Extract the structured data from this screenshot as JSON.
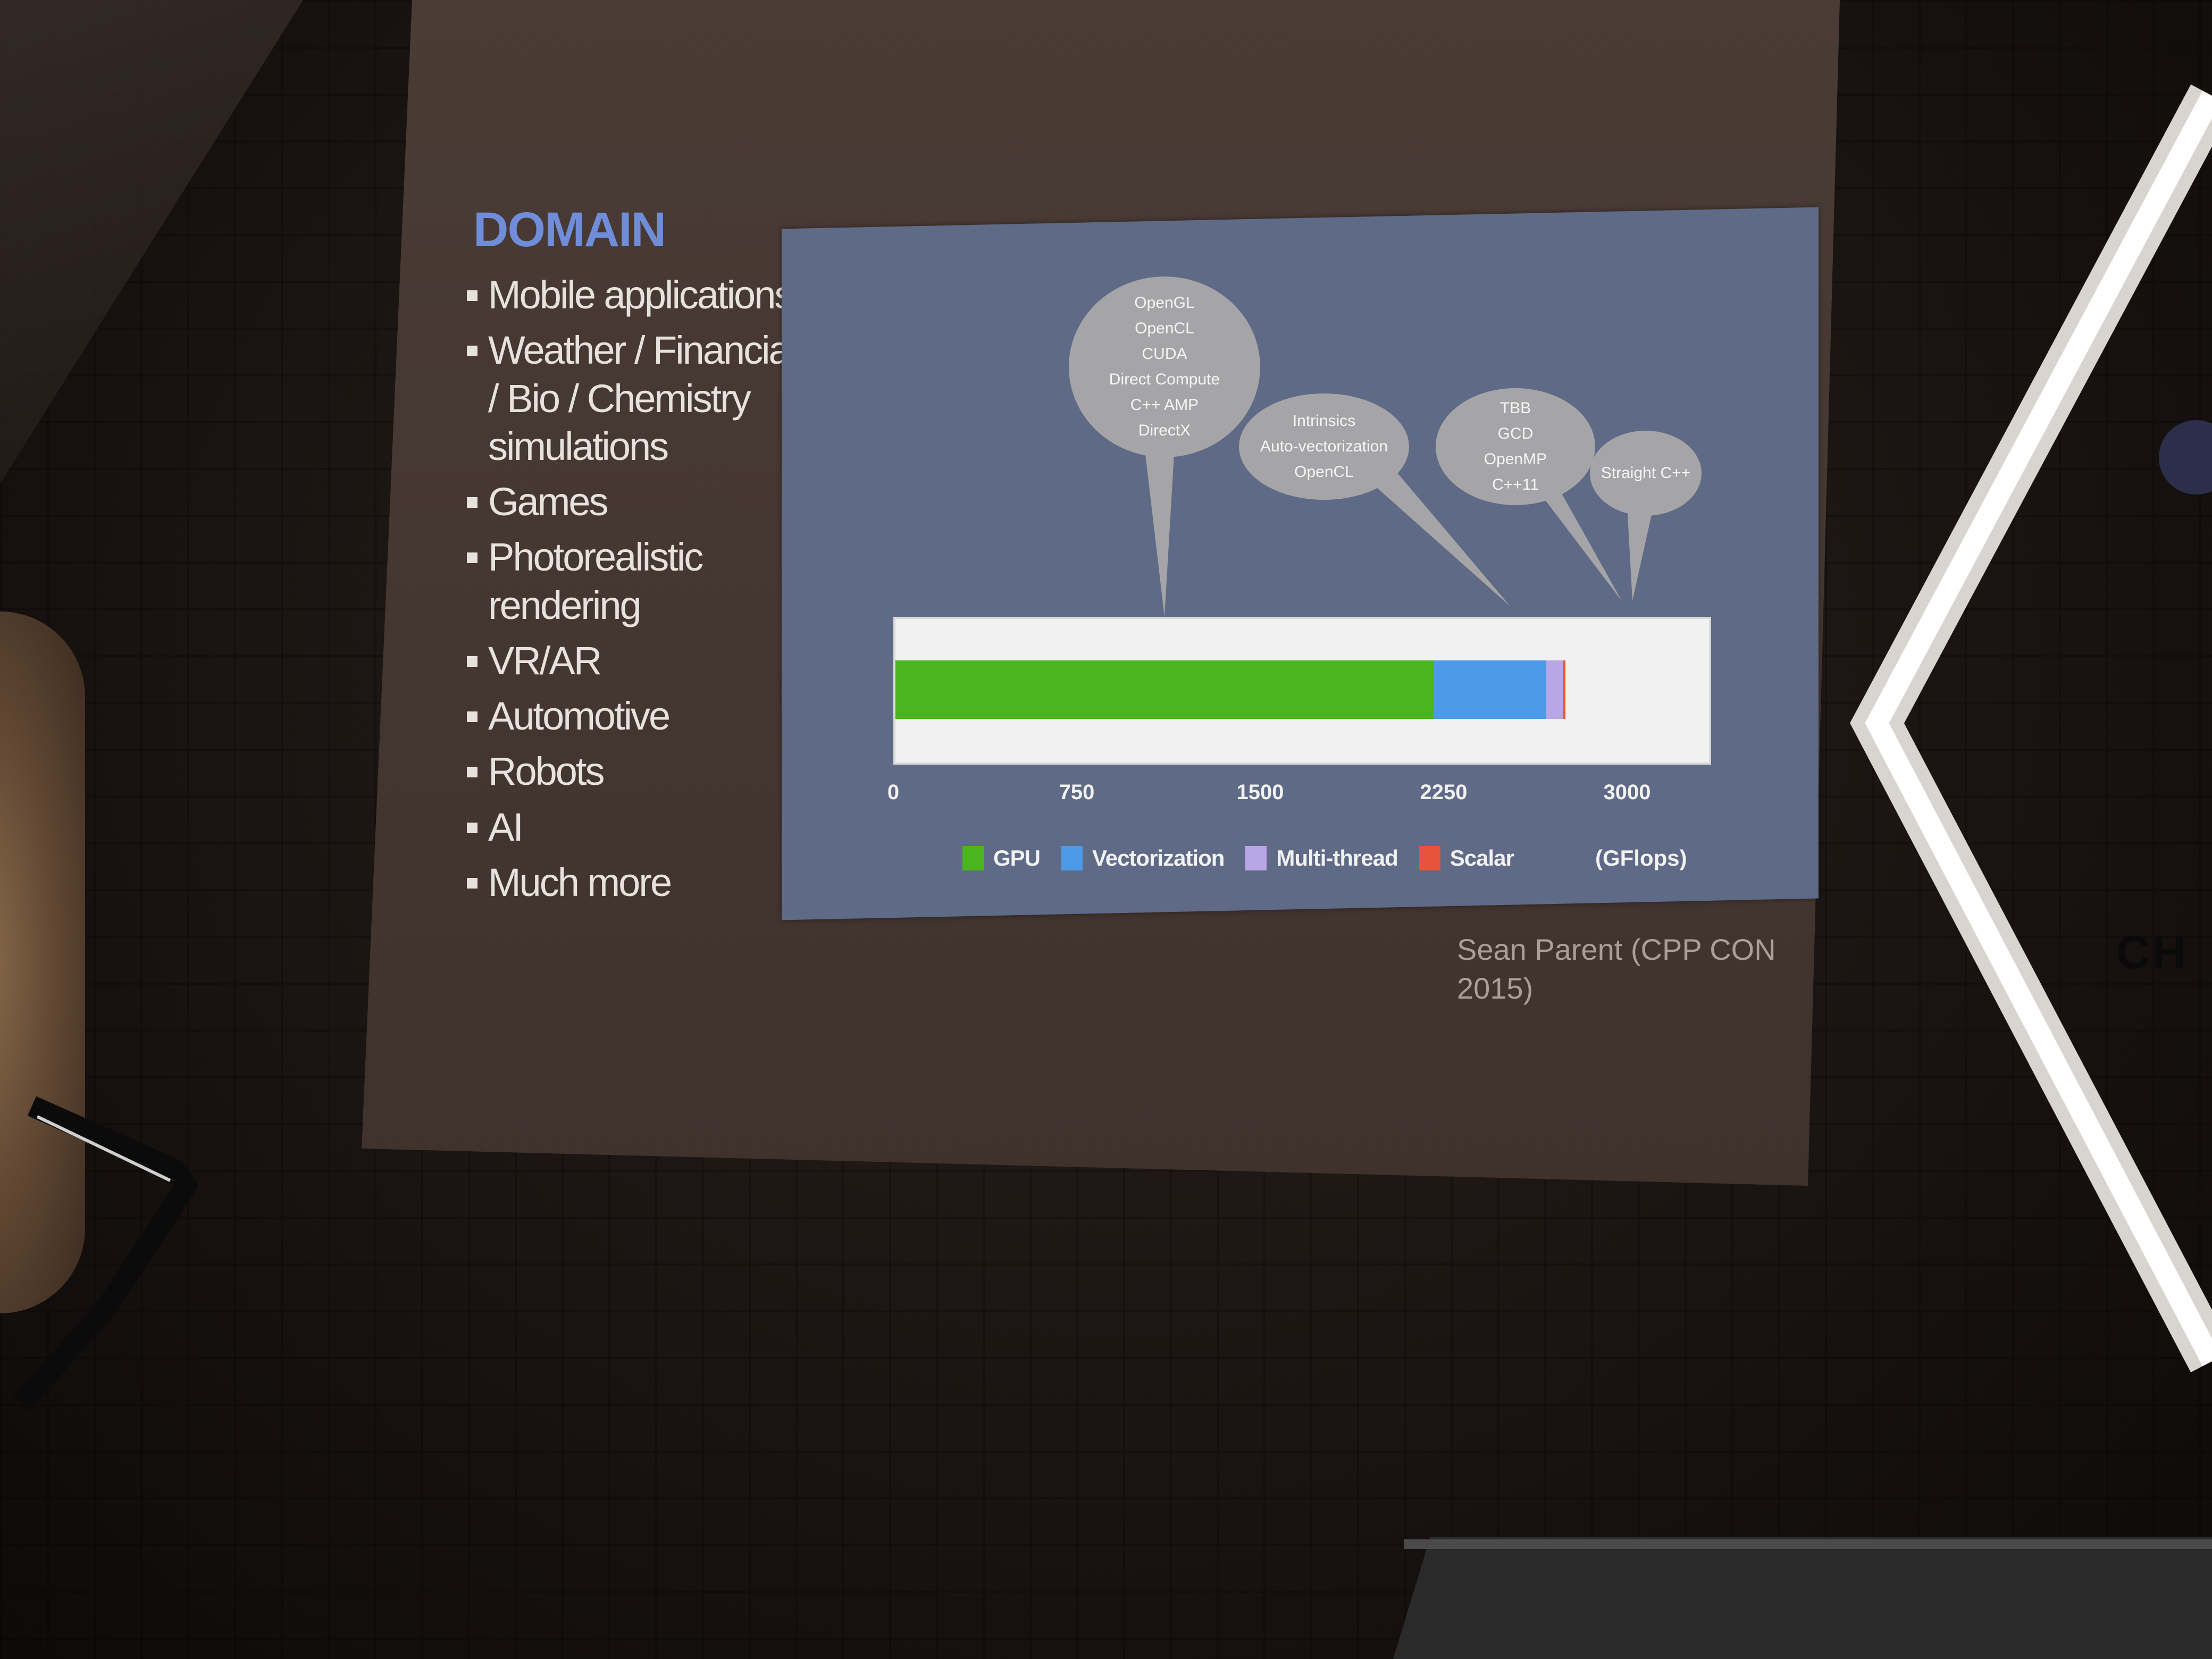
{
  "slide": {
    "title": "DOMAIN",
    "bullets": [
      "Mobile applications",
      "Weather / Financial / Bio / Chemistry simulations",
      "Games",
      "Photorealistic rendering",
      "VR/AR",
      "Automotive",
      "Robots",
      "AI",
      "Much more"
    ],
    "credit": "Sean Parent (CPP CON 2015)"
  },
  "chart": {
    "bubbles": {
      "gpu": [
        "OpenGL",
        "OpenCL",
        "CUDA",
        "Direct Compute",
        "C++ AMP",
        "DirectX"
      ],
      "vectorization": [
        "Intrinsics",
        "Auto-vectorization",
        "OpenCL"
      ],
      "multithread": [
        "TBB",
        "GCD",
        "OpenMP",
        "C++11"
      ],
      "scalar": [
        "Straight C++"
      ]
    },
    "ticks": [
      "0",
      "750",
      "1500",
      "2250",
      "3000"
    ],
    "legend": [
      "GPU",
      "Vectorization",
      "Multi-thread",
      "Scalar"
    ],
    "units": "(GFlops)"
  },
  "colors": {
    "gpu": "#4ab51f",
    "vectorization": "#4d9be8",
    "multithread": "#b9a6e6",
    "scalar": "#e8533b",
    "title": "#6f8dd8"
  },
  "chart_data": {
    "type": "bar",
    "categories": [
      ""
    ],
    "series": [
      {
        "name": "GPU",
        "values": [
          2200
        ]
      },
      {
        "name": "Vectorization",
        "values": [
          460
        ]
      },
      {
        "name": "Multi-thread",
        "values": [
          70
        ]
      },
      {
        "name": "Scalar",
        "values": [
          5
        ]
      }
    ],
    "stacked": true,
    "orientation": "horizontal",
    "xlim": [
      0,
      3000
    ],
    "xticks": [
      0,
      750,
      1500,
      2250,
      3000
    ],
    "xlabel": "(GFlops)",
    "legend_position": "bottom"
  },
  "background": {
    "sign_text": "CH"
  }
}
